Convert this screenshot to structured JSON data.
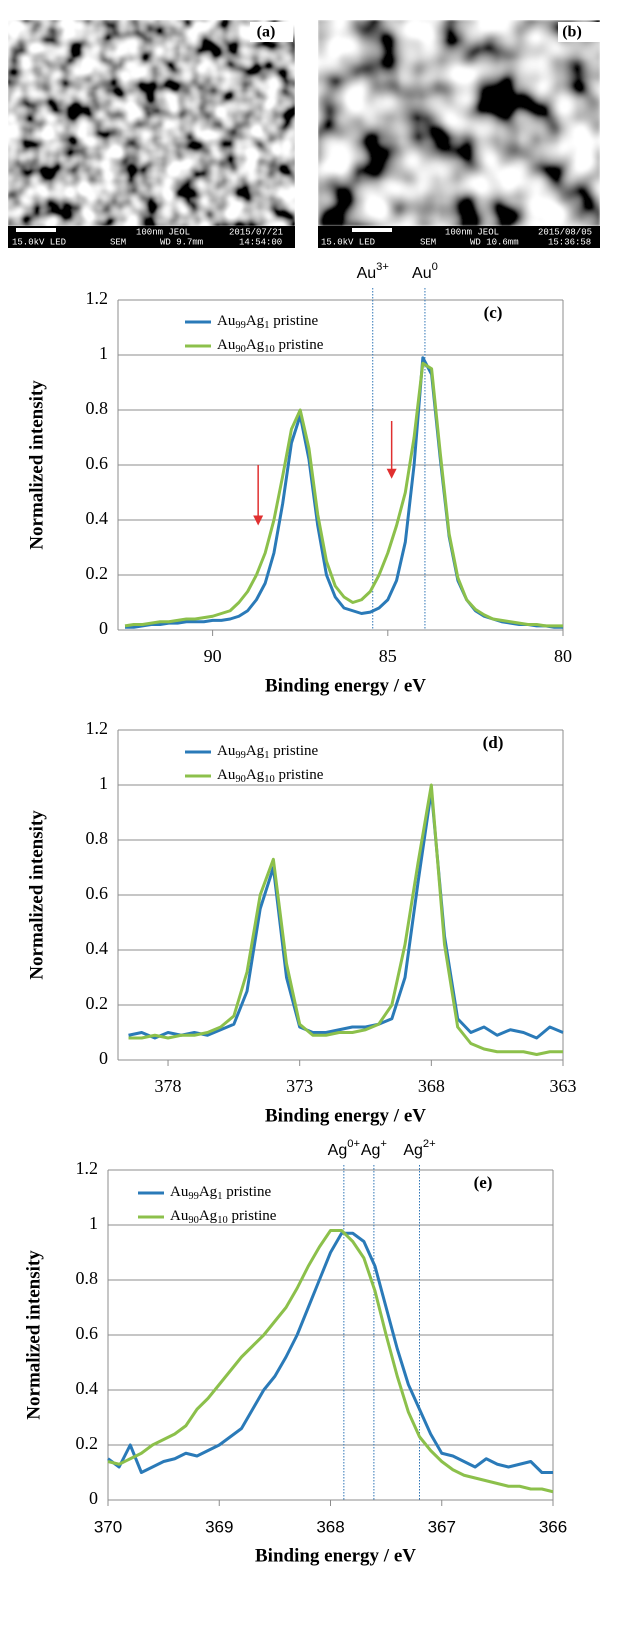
{
  "images": [
    {
      "label": "(a)",
      "kv": "15.0kV LED",
      "mode": "SEM",
      "scale": "100nm JEOL",
      "date": "2015/07/21",
      "wd": "WD 9.7mm",
      "time": "14:54:00"
    },
    {
      "label": "(b)",
      "kv": "15.0kV LED",
      "mode": "SEM",
      "scale": "100nm JEOL",
      "date": "2015/08/05",
      "wd": "WD 10.6mm",
      "time": "15:36:58"
    }
  ],
  "chart_data": [
    {
      "type": "line",
      "label": "(c)",
      "xlabel": "Binding energy / eV",
      "ylabel": "Normalized intensity",
      "xlim": [
        92.7,
        80
      ],
      "xticks": [
        90,
        85,
        80
      ],
      "ylim": [
        0,
        1.2
      ],
      "yticks": [
        0,
        0.2,
        0.4,
        0.6,
        0.8,
        1,
        1.2
      ],
      "grid": true,
      "x": [
        92.5,
        92.25,
        92,
        91.75,
        91.5,
        91.25,
        91,
        90.75,
        90.5,
        90.25,
        90,
        89.75,
        89.5,
        89.25,
        89,
        88.75,
        88.5,
        88.25,
        88,
        87.75,
        87.5,
        87.25,
        87,
        86.75,
        86.5,
        86.25,
        86,
        85.75,
        85.5,
        85.25,
        85,
        84.75,
        84.5,
        84.25,
        84,
        83.75,
        83.5,
        83.25,
        83,
        82.75,
        82.5,
        82.25,
        82,
        81.75,
        81.5,
        81.25,
        81,
        80.75,
        80.5,
        80.25,
        80
      ],
      "series": [
        {
          "name": "Au99Ag1 pristine",
          "color": "#2a7ab8",
          "values": [
            0.01,
            0.01,
            0.015,
            0.02,
            0.02,
            0.025,
            0.025,
            0.03,
            0.03,
            0.03,
            0.035,
            0.035,
            0.04,
            0.05,
            0.07,
            0.11,
            0.17,
            0.28,
            0.46,
            0.68,
            0.78,
            0.62,
            0.38,
            0.2,
            0.12,
            0.08,
            0.07,
            0.06,
            0.065,
            0.08,
            0.11,
            0.18,
            0.32,
            0.6,
            0.99,
            0.93,
            0.62,
            0.34,
            0.18,
            0.11,
            0.07,
            0.05,
            0.04,
            0.03,
            0.025,
            0.02,
            0.02,
            0.015,
            0.015,
            0.01,
            0.01
          ]
        },
        {
          "name": "Au90Ag10 pristine",
          "color": "#8cc04b",
          "values": [
            0.015,
            0.02,
            0.02,
            0.025,
            0.03,
            0.03,
            0.035,
            0.04,
            0.04,
            0.045,
            0.05,
            0.06,
            0.07,
            0.1,
            0.14,
            0.2,
            0.28,
            0.4,
            0.56,
            0.73,
            0.8,
            0.66,
            0.42,
            0.25,
            0.16,
            0.12,
            0.1,
            0.11,
            0.14,
            0.2,
            0.28,
            0.38,
            0.5,
            0.7,
            0.97,
            0.95,
            0.64,
            0.35,
            0.19,
            0.11,
            0.075,
            0.055,
            0.04,
            0.035,
            0.03,
            0.025,
            0.02,
            0.02,
            0.015,
            0.015,
            0.015
          ]
        }
      ],
      "reference_lines": [
        {
          "x": 85.43,
          "label": "Au3+"
        },
        {
          "x": 83.94,
          "label": "Au0"
        }
      ],
      "arrows": [
        {
          "x": 88.7,
          "y_from": 0.6,
          "y_to": 0.38,
          "color": "#e03030"
        },
        {
          "x": 84.89,
          "y_from": 0.76,
          "y_to": 0.55,
          "color": "#e03030"
        }
      ]
    },
    {
      "type": "line",
      "label": "(d)",
      "xlabel": "Binding energy / eV",
      "ylabel": "Normalized intensity",
      "xlim": [
        379.9,
        363
      ],
      "xticks": [
        378,
        373,
        368,
        363
      ],
      "ylim": [
        0,
        1.2
      ],
      "yticks": [
        0,
        0.2,
        0.4,
        0.6,
        0.8,
        1,
        1.2
      ],
      "grid": true,
      "x": [
        379.5,
        379,
        378.5,
        378,
        377.5,
        377,
        376.5,
        376,
        375.5,
        375,
        374.5,
        374,
        373.5,
        373,
        372.5,
        372,
        371.5,
        371,
        370.5,
        370,
        369.5,
        369,
        368.5,
        368,
        367.5,
        367,
        366.5,
        366,
        365.5,
        365,
        364.5,
        364,
        363.5,
        363
      ],
      "series": [
        {
          "name": "Au99Ag1 pristine",
          "color": "#2a7ab8",
          "values": [
            0.09,
            0.1,
            0.08,
            0.1,
            0.09,
            0.1,
            0.09,
            0.11,
            0.13,
            0.25,
            0.55,
            0.7,
            0.3,
            0.12,
            0.1,
            0.1,
            0.11,
            0.12,
            0.12,
            0.13,
            0.15,
            0.3,
            0.65,
            0.98,
            0.45,
            0.15,
            0.1,
            0.12,
            0.09,
            0.11,
            0.1,
            0.08,
            0.12,
            0.1
          ]
        },
        {
          "name": "Au90Ag10 pristine",
          "color": "#8cc04b",
          "values": [
            0.08,
            0.08,
            0.09,
            0.08,
            0.09,
            0.09,
            0.1,
            0.12,
            0.16,
            0.32,
            0.6,
            0.73,
            0.35,
            0.13,
            0.09,
            0.09,
            0.1,
            0.1,
            0.11,
            0.13,
            0.2,
            0.42,
            0.72,
            1.0,
            0.42,
            0.12,
            0.06,
            0.04,
            0.03,
            0.03,
            0.03,
            0.02,
            0.03,
            0.03
          ]
        }
      ]
    },
    {
      "type": "line",
      "label": "(e)",
      "xlabel": "Binding energy / eV",
      "ylabel": "Normalized intensity",
      "xlim": [
        370,
        366
      ],
      "xticks": [
        370,
        369,
        368,
        367,
        366
      ],
      "ylim": [
        0,
        1.2
      ],
      "yticks": [
        0,
        0.2,
        0.4,
        0.6,
        0.8,
        1,
        1.2
      ],
      "grid": true,
      "x": [
        370,
        369.9,
        369.8,
        369.7,
        369.6,
        369.5,
        369.4,
        369.3,
        369.2,
        369.1,
        369,
        368.9,
        368.8,
        368.7,
        368.6,
        368.5,
        368.4,
        368.3,
        368.2,
        368.1,
        368,
        367.9,
        367.8,
        367.7,
        367.6,
        367.5,
        367.4,
        367.3,
        367.2,
        367.1,
        367,
        366.9,
        366.8,
        366.7,
        366.6,
        366.5,
        366.4,
        366.3,
        366.2,
        366.1,
        366
      ],
      "series": [
        {
          "name": "Au99Ag1 pristine",
          "color": "#2a7ab8",
          "values": [
            0.15,
            0.12,
            0.2,
            0.1,
            0.12,
            0.14,
            0.15,
            0.17,
            0.16,
            0.18,
            0.2,
            0.23,
            0.26,
            0.33,
            0.4,
            0.45,
            0.52,
            0.6,
            0.7,
            0.8,
            0.9,
            0.97,
            0.97,
            0.94,
            0.85,
            0.7,
            0.55,
            0.42,
            0.33,
            0.24,
            0.17,
            0.16,
            0.14,
            0.12,
            0.15,
            0.13,
            0.12,
            0.13,
            0.14,
            0.1,
            0.1
          ]
        },
        {
          "name": "Au90Ag10 pristine",
          "color": "#8cc04b",
          "values": [
            0.14,
            0.13,
            0.15,
            0.17,
            0.2,
            0.22,
            0.24,
            0.27,
            0.33,
            0.37,
            0.42,
            0.47,
            0.52,
            0.56,
            0.6,
            0.65,
            0.7,
            0.77,
            0.85,
            0.92,
            0.98,
            0.98,
            0.94,
            0.88,
            0.76,
            0.6,
            0.45,
            0.32,
            0.23,
            0.18,
            0.14,
            0.11,
            0.09,
            0.08,
            0.07,
            0.06,
            0.05,
            0.05,
            0.04,
            0.04,
            0.03
          ]
        }
      ],
      "reference_lines": [
        {
          "x": 367.88,
          "label": "Ag0+"
        },
        {
          "x": 367.61,
          "label": "Ag+"
        },
        {
          "x": 367.2,
          "label": "Ag2+"
        }
      ]
    }
  ]
}
